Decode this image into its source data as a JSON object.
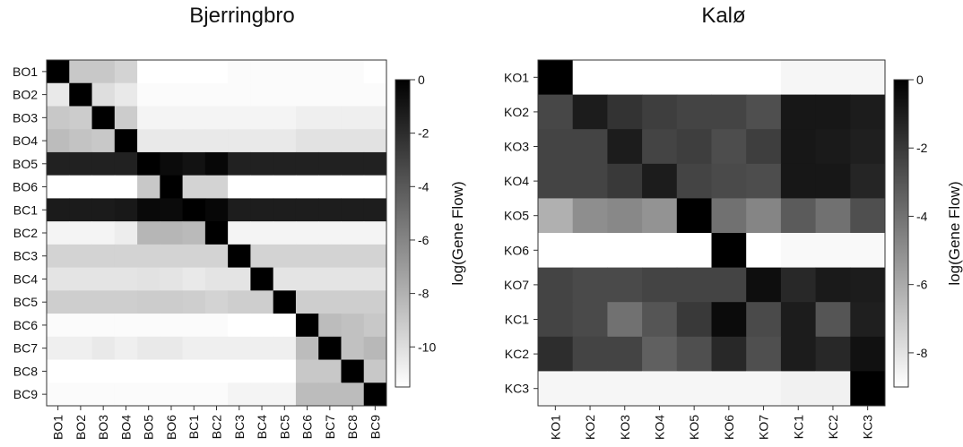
{
  "chart_data": [
    {
      "type": "heatmap",
      "title": "Bjerringbro",
      "rows": [
        "BO1",
        "BO2",
        "BO3",
        "BO4",
        "BO5",
        "BO6",
        "BC1",
        "BC2",
        "BC3",
        "BC4",
        "BC5",
        "BC6",
        "BC7",
        "BC8",
        "BC9"
      ],
      "columns": [
        "BO1",
        "BO2",
        "BO3",
        "BO4",
        "BO5",
        "BO6",
        "BC1",
        "BC2",
        "BC3",
        "BC4",
        "BC5",
        "BC6",
        "BC7",
        "BC8",
        "BC9"
      ],
      "colorbar": {
        "label": "log(Gene Flow)",
        "ticks": [
          0,
          -2,
          -4,
          -6,
          -8,
          -10
        ],
        "min": -11.5,
        "max": 0,
        "colors": [
          "#ffffff",
          "#000000"
        ]
      },
      "values": [
        [
          0,
          -9,
          -9,
          -9.5,
          -11.5,
          -11.5,
          -11.5,
          -11.5,
          -11.3,
          -11.3,
          -11.3,
          -11.3,
          -11.3,
          -11.3,
          -11.5
        ],
        [
          -10.5,
          0,
          -10,
          -10.5,
          -11.3,
          -11.3,
          -11.3,
          -11.3,
          -11.3,
          -11.3,
          -11.3,
          -11.3,
          -11.3,
          -11.3,
          -11.3
        ],
        [
          -9,
          -9.2,
          0,
          -9.2,
          -11,
          -11,
          -11,
          -11,
          -11,
          -11,
          -11,
          -10.8,
          -10.8,
          -10.8,
          -10.8
        ],
        [
          -8.5,
          -8.8,
          -9,
          0,
          -10.5,
          -10.5,
          -10.5,
          -10.5,
          -10.5,
          -10.5,
          -10.5,
          -10.2,
          -10.2,
          -10.2,
          -10.2
        ],
        [
          -1.5,
          -1.5,
          -1.5,
          -1.5,
          0,
          -0.5,
          -0.8,
          -0.3,
          -1.5,
          -1.5,
          -1.5,
          -1.5,
          -1.5,
          -1.5,
          -1.5
        ],
        [
          -11.5,
          -11.5,
          -11.5,
          -11.5,
          -9,
          0,
          -9.5,
          -9.5,
          -11.5,
          -11.5,
          -11.5,
          -11.5,
          -11.5,
          -11.5,
          -11.5
        ],
        [
          -1.2,
          -1.2,
          -1.2,
          -1.1,
          -0.4,
          -0.5,
          0,
          -0.3,
          -1.3,
          -1.3,
          -1.3,
          -1.3,
          -1.3,
          -1.3,
          -1.3
        ],
        [
          -11,
          -11,
          -11,
          -10.7,
          -8.2,
          -8.2,
          -8.4,
          0,
          -11,
          -11,
          -11,
          -11,
          -11,
          -11,
          -11
        ],
        [
          -9.5,
          -9.5,
          -9.5,
          -9.5,
          -9.5,
          -9.5,
          -9.5,
          -9.5,
          0,
          -9.5,
          -9.5,
          -9.5,
          -9.5,
          -9.5,
          -9.5
        ],
        [
          -10.3,
          -10.3,
          -10.3,
          -10.3,
          -10.2,
          -10.3,
          -10.5,
          -10.3,
          -10.3,
          0,
          -10.3,
          -10.3,
          -10.3,
          -10.3,
          -10.3
        ],
        [
          -9.3,
          -9.3,
          -9.3,
          -9.3,
          -9.2,
          -9.2,
          -9.3,
          -9.5,
          -9.3,
          -9.3,
          0,
          -9.3,
          -9.3,
          -9.3,
          -9.3
        ],
        [
          -11.3,
          -11.3,
          -11.3,
          -11.3,
          -11.3,
          -11.3,
          -11.3,
          -11.3,
          -11.5,
          -11.5,
          -11.5,
          0,
          -8.5,
          -8.7,
          -9
        ],
        [
          -10.8,
          -10.8,
          -10.5,
          -10.8,
          -10.5,
          -10.5,
          -10.8,
          -10.8,
          -10.8,
          -10.8,
          -10.8,
          -8.5,
          0,
          -8.7,
          -8.3
        ],
        [
          -11.5,
          -11.5,
          -11.5,
          -11.5,
          -11.5,
          -11.5,
          -11.5,
          -11.5,
          -11.5,
          -11.5,
          -11.5,
          -9,
          -9,
          0,
          -9
        ],
        [
          -11.3,
          -11.3,
          -11.3,
          -11.3,
          -11.3,
          -11.3,
          -11.3,
          -11.3,
          -11,
          -11,
          -11,
          -8.5,
          -8.5,
          -8.5,
          0
        ]
      ]
    },
    {
      "type": "heatmap",
      "title": "Kalø",
      "rows": [
        "KO1",
        "KO2",
        "KO3",
        "KO4",
        "KO5",
        "KO6",
        "KO7",
        "KC1",
        "KC2",
        "KC3"
      ],
      "columns": [
        "KO1",
        "KO2",
        "KO3",
        "KO4",
        "KO5",
        "KO6",
        "KO7",
        "KC1",
        "KC2",
        "KC3"
      ],
      "colorbar": {
        "label": "log(Gene Flow)",
        "ticks": [
          0,
          -2,
          -4,
          -6,
          -8
        ],
        "min": -9,
        "max": 0,
        "colors": [
          "#ffffff",
          "#000000"
        ]
      },
      "values": [
        [
          0,
          -9,
          -9,
          -9,
          -9,
          -9,
          -9,
          -8.7,
          -8.7,
          -8.7
        ],
        [
          -2.5,
          -1,
          -1.8,
          -2.2,
          -2.4,
          -2.4,
          -2.8,
          -0.8,
          -0.8,
          -1
        ],
        [
          -2.4,
          -2.4,
          -1,
          -2.4,
          -2.2,
          -2.7,
          -2.2,
          -0.8,
          -0.9,
          -1.1
        ],
        [
          -2.4,
          -2.4,
          -2,
          -1,
          -2.4,
          -2.6,
          -2.7,
          -0.8,
          -0.8,
          -1.3
        ],
        [
          -6.2,
          -5,
          -4.8,
          -5.2,
          0,
          -4,
          -4.7,
          -3.2,
          -4,
          -2.8
        ],
        [
          -9,
          -9,
          -9,
          -9,
          -9,
          0,
          -9,
          -8.8,
          -8.8,
          -8.8
        ],
        [
          -2.4,
          -2.6,
          -2.6,
          -2.4,
          -2.4,
          -2.4,
          -0.5,
          -1.4,
          -0.9,
          -1
        ],
        [
          -2.4,
          -2.6,
          -4,
          -3,
          -2,
          -0.4,
          -2.6,
          -1,
          -3,
          -1.1
        ],
        [
          -1.6,
          -2.4,
          -2.4,
          -3.4,
          -2.8,
          -1.4,
          -2.8,
          -1,
          -1.4,
          -0.6
        ],
        [
          -8.7,
          -8.7,
          -8.7,
          -8.7,
          -8.7,
          -8.7,
          -8.7,
          -8.5,
          -8.5,
          0
        ]
      ]
    }
  ]
}
